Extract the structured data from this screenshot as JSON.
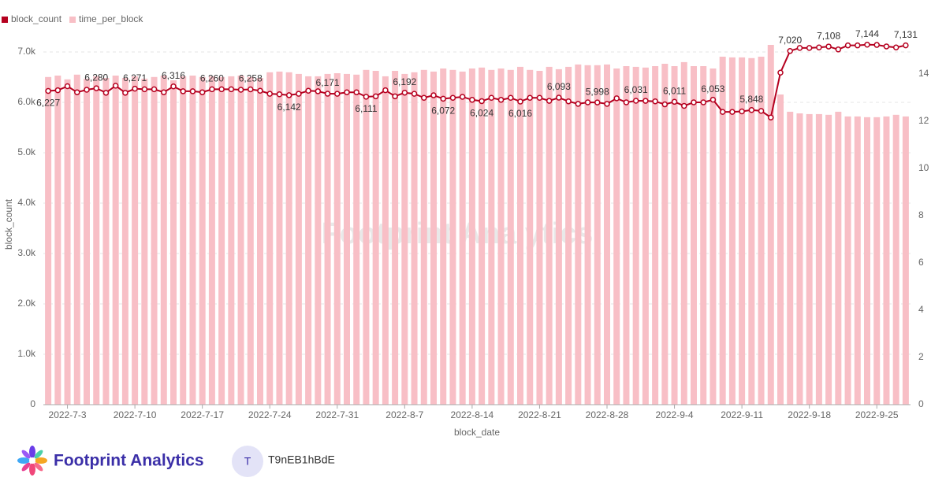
{
  "chart_data": {
    "type": "bar-line",
    "categories": [
      null,
      null,
      "2022-7-3",
      null,
      null,
      null,
      null,
      null,
      null,
      "2022-7-10",
      null,
      null,
      null,
      null,
      null,
      null,
      "2022-7-17",
      null,
      null,
      null,
      null,
      null,
      null,
      "2022-7-24",
      null,
      null,
      null,
      null,
      null,
      null,
      "2022-7-31",
      null,
      null,
      null,
      null,
      null,
      null,
      "2022-8-7",
      null,
      null,
      null,
      null,
      null,
      null,
      "2022-8-14",
      null,
      null,
      null,
      null,
      null,
      null,
      "2022-8-21",
      null,
      null,
      null,
      null,
      null,
      null,
      "2022-8-28",
      null,
      null,
      null,
      null,
      null,
      null,
      "2022-9-4",
      null,
      null,
      null,
      null,
      null,
      null,
      "2022-9-11",
      null,
      null,
      null,
      null,
      null,
      null,
      "2022-9-18",
      null,
      null,
      null,
      null,
      null,
      null,
      "2022-9-25",
      null,
      null,
      null
    ],
    "series": [
      {
        "name": "block_count",
        "color": "#b5001f",
        "kind": "line",
        "values": [
          6227,
          6240,
          6320,
          6200,
          6250,
          6280,
          6190,
          6330,
          6190,
          6271,
          6260,
          6260,
          6200,
          6316,
          6220,
          6220,
          6200,
          6260,
          6260,
          6260,
          6250,
          6258,
          6230,
          6170,
          6160,
          6142,
          6170,
          6230,
          6220,
          6171,
          6170,
          6200,
          6200,
          6111,
          6120,
          6240,
          6120,
          6192,
          6170,
          6090,
          6140,
          6072,
          6090,
          6110,
          6050,
          6024,
          6090,
          6050,
          6090,
          6016,
          6090,
          6090,
          6030,
          6093,
          6020,
          5970,
          6000,
          5998,
          5970,
          6080,
          6000,
          6031,
          6030,
          6020,
          5960,
          6011,
          5930,
          6000,
          6000,
          6053,
          5810,
          5810,
          5820,
          5848,
          5830,
          5700,
          6590,
          7020,
          7080,
          7080,
          7090,
          7108,
          7050,
          7130,
          7130,
          7144,
          7140,
          7110,
          7090,
          7131
        ],
        "value_labels": [
          "6,227",
          null,
          null,
          null,
          null,
          "6,280",
          null,
          null,
          null,
          "6,271",
          null,
          null,
          null,
          "6,316",
          null,
          null,
          null,
          "6,260",
          null,
          null,
          null,
          "6,258",
          null,
          null,
          null,
          "6,142",
          null,
          null,
          null,
          "6,171",
          null,
          null,
          null,
          "6,111",
          null,
          null,
          null,
          "6,192",
          null,
          null,
          null,
          "6,072",
          null,
          null,
          null,
          "6,024",
          null,
          null,
          null,
          "6,016",
          null,
          null,
          null,
          "6,093",
          null,
          null,
          null,
          "5,998",
          null,
          null,
          null,
          "6,031",
          null,
          null,
          null,
          "6,011",
          null,
          null,
          null,
          "6,053",
          null,
          null,
          null,
          "5,848",
          null,
          null,
          null,
          "7,020",
          null,
          null,
          null,
          "7,108",
          null,
          null,
          null,
          "7,144",
          null,
          null,
          null,
          "7,131"
        ]
      },
      {
        "name": "time_per_block",
        "color": "#f8bfc6",
        "kind": "bar",
        "axis": "y2",
        "values": [
          13.87,
          13.93,
          13.77,
          13.97,
          13.8,
          13.9,
          13.83,
          13.93,
          13.83,
          13.9,
          13.8,
          13.87,
          13.93,
          13.73,
          13.9,
          13.93,
          13.87,
          13.9,
          13.87,
          13.9,
          13.93,
          13.87,
          13.83,
          14.07,
          14.1,
          14.07,
          14.0,
          13.9,
          13.9,
          14.0,
          14.03,
          14.0,
          13.97,
          14.17,
          14.13,
          13.9,
          14.13,
          14.0,
          14.07,
          14.17,
          14.1,
          14.23,
          14.17,
          14.1,
          14.23,
          14.27,
          14.17,
          14.23,
          14.17,
          14.3,
          14.17,
          14.13,
          14.3,
          14.2,
          14.3,
          14.4,
          14.37,
          14.37,
          14.4,
          14.23,
          14.33,
          14.3,
          14.27,
          14.33,
          14.43,
          14.33,
          14.5,
          14.33,
          14.33,
          14.23,
          14.73,
          14.7,
          14.7,
          14.67,
          14.73,
          15.23,
          13.13,
          12.4,
          12.33,
          12.3,
          12.3,
          12.27,
          12.4,
          12.2,
          12.2,
          12.17,
          12.17,
          12.2,
          12.27,
          12.2
        ]
      }
    ],
    "xlabel": "block_date",
    "ylabel": "block_count",
    "ylim": [
      0,
      7000
    ],
    "yticks": [
      0,
      {
        "value": 1000,
        "label": "1.0k"
      },
      {
        "value": 2000,
        "label": "2.0k"
      },
      {
        "value": 3000,
        "label": "3.0k"
      },
      {
        "value": 4000,
        "label": "4.0k"
      },
      {
        "value": 5000,
        "label": "5.0k"
      },
      {
        "value": 6000,
        "label": "6.0k"
      },
      {
        "value": 7000,
        "label": "7.0k"
      }
    ],
    "y2lim": [
      0,
      14.93
    ],
    "y2ticks": [
      0,
      2,
      4,
      6,
      8,
      10,
      12,
      14
    ],
    "grid": true,
    "legend": "top-left"
  },
  "watermark": "Footprint Analytics",
  "footer": {
    "brand": "Footprint Analytics",
    "user_initial": "T",
    "user_name": "T9nEB1hBdE"
  }
}
